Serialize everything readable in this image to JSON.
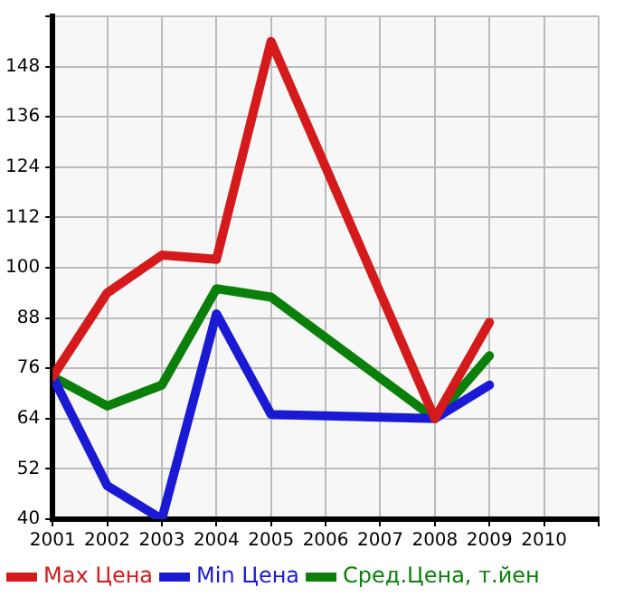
{
  "chart_data": {
    "type": "line",
    "x": [
      2001,
      2002,
      2003,
      2004,
      2005,
      2008,
      2009
    ],
    "xlim": [
      2001,
      2011
    ],
    "xticks": [
      2001,
      2002,
      2003,
      2004,
      2005,
      2006,
      2007,
      2008,
      2009,
      2010,
      {
        "value": 2011,
        "label": null
      }
    ],
    "ylim": [
      40,
      160
    ],
    "yticks": [
      40,
      52,
      64,
      76,
      88,
      100,
      112,
      124,
      136,
      148,
      {
        "value": 160,
        "label": null
      }
    ],
    "grid": true,
    "legend": "bottom",
    "marker": "none",
    "line_style": "solid",
    "series": [
      {
        "name": "Max Цена",
        "color": "#d41a1a",
        "values": [
          74,
          94,
          103,
          102,
          154,
          64,
          87
        ]
      },
      {
        "name": "Min Цена",
        "color": "#1a1ad4",
        "values": [
          74,
          48,
          40,
          89,
          65,
          64,
          72
        ]
      },
      {
        "name": "Сред.Цена, т.йен",
        "color": "#0a800a",
        "values": [
          74,
          67,
          72,
          95,
          93,
          64,
          79
        ]
      }
    ]
  }
}
